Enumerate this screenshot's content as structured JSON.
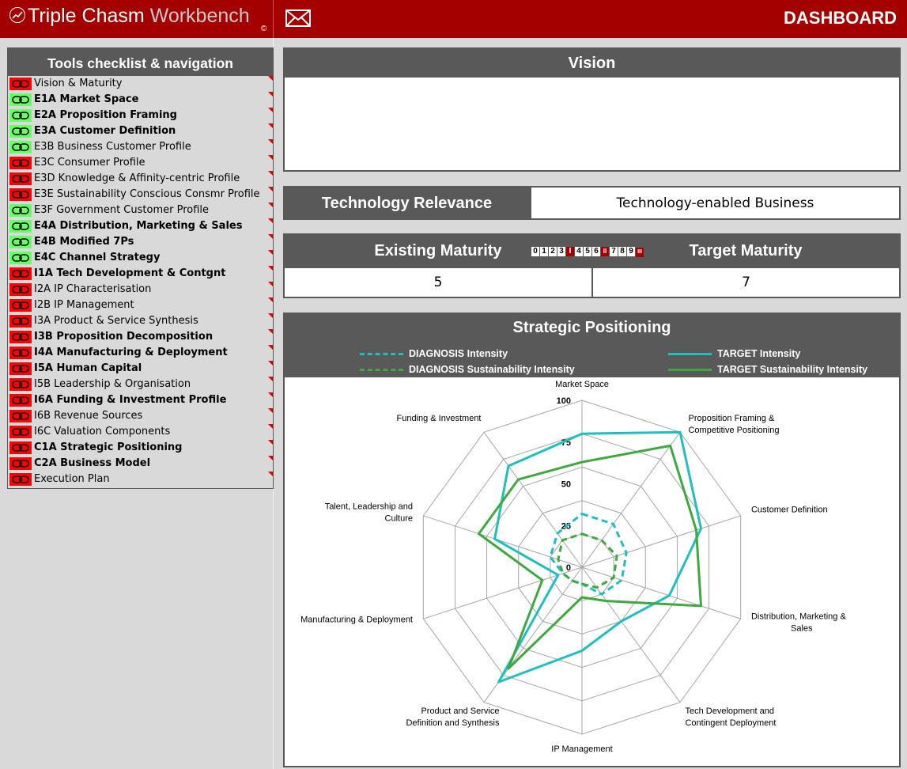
{
  "app": {
    "logo_main": "Triple Chasm",
    "logo_light": "Workbench",
    "logo_copyright": "©",
    "page_title": "DASHBOARD"
  },
  "checklist": {
    "title": "Tools checklist & navigation",
    "items": [
      {
        "label": "Vision & Maturity",
        "status": "red",
        "bold": false
      },
      {
        "label": "E1A Market Space",
        "status": "green",
        "bold": true
      },
      {
        "label": "E2A Proposition Framing",
        "status": "green",
        "bold": true
      },
      {
        "label": "E3A Customer Definition",
        "status": "green",
        "bold": true
      },
      {
        "label": "E3B Business Customer Profile",
        "status": "green",
        "bold": false
      },
      {
        "label": "E3C Consumer Profile",
        "status": "red",
        "bold": false
      },
      {
        "label": "E3D Knowledge & Affinity-centric Profile",
        "status": "red",
        "bold": false
      },
      {
        "label": "E3E Sustainability Conscious Consmr Profile",
        "status": "red",
        "bold": false
      },
      {
        "label": "E3F Government Customer Profile",
        "status": "green",
        "bold": false
      },
      {
        "label": "E4A Distribution, Marketing & Sales",
        "status": "green",
        "bold": true
      },
      {
        "label": "E4B Modified 7Ps",
        "status": "green",
        "bold": true
      },
      {
        "label": "E4C Channel Strategy",
        "status": "green",
        "bold": true
      },
      {
        "label": "I1A Tech Development & Contgnt",
        "status": "red",
        "bold": true
      },
      {
        "label": "I2A IP Characterisation",
        "status": "red",
        "bold": false
      },
      {
        "label": "I2B IP Management",
        "status": "red",
        "bold": false
      },
      {
        "label": "I3A Product & Service Synthesis",
        "status": "red",
        "bold": false
      },
      {
        "label": "I3B Proposition Decomposition",
        "status": "red",
        "bold": true
      },
      {
        "label": "I4A Manufacturing & Deployment",
        "status": "red",
        "bold": true
      },
      {
        "label": "I5A Human Capital",
        "status": "red",
        "bold": true
      },
      {
        "label": "I5B Leadership & Organisation",
        "status": "red",
        "bold": false
      },
      {
        "label": "I6A Funding & Investment Profile",
        "status": "red",
        "bold": true
      },
      {
        "label": "I6B Revenue Sources",
        "status": "red",
        "bold": false
      },
      {
        "label": "I6C Valuation Components",
        "status": "red",
        "bold": false
      },
      {
        "label": "C1A Strategic Positioning",
        "status": "red",
        "bold": true
      },
      {
        "label": "C2A Business Model",
        "status": "red",
        "bold": true
      },
      {
        "label": "Execution Plan",
        "status": "red",
        "bold": false
      }
    ]
  },
  "vision": {
    "title": "Vision",
    "text": ""
  },
  "tech": {
    "label": "Technology Relevance",
    "value": "Technology-enabled Business"
  },
  "maturity": {
    "existing_label": "Existing Maturity",
    "target_label": "Target Maturity",
    "existing_value": "5",
    "target_value": "7",
    "scale": [
      {
        "t": "0",
        "dark": false
      },
      {
        "t": "1",
        "dark": false
      },
      {
        "t": "2",
        "dark": false
      },
      {
        "t": "3",
        "dark": false
      },
      {
        "t": "I",
        "dark": true
      },
      {
        "t": "4",
        "dark": false
      },
      {
        "t": "5",
        "dark": false
      },
      {
        "t": "6",
        "dark": false
      },
      {
        "t": "II",
        "dark": true
      },
      {
        "t": "7",
        "dark": false
      },
      {
        "t": "8",
        "dark": false
      },
      {
        "t": "9",
        "dark": false
      },
      {
        "t": "III",
        "dark": true
      }
    ]
  },
  "colors": {
    "brand_red": "#a50000",
    "panel_gray": "#595959",
    "status_red": "#ff0000",
    "status_green": "#66ff66",
    "teal": "#1fbfbf",
    "green": "#3fa83f"
  },
  "chart_data": {
    "type": "radar",
    "title": "Strategic Positioning",
    "axes": [
      "Market Space",
      "Proposition Framing & Competitive Positioning",
      "Customer Definition",
      "Distribution, Marketing & Sales",
      "Tech Development and Contingent Deployment",
      "IP Management",
      "Product and Service Definition and Synthesis",
      "Manufacturing & Deployment",
      "Talent, Leadership and Culture",
      "Funding & Investment"
    ],
    "axis_label_lines": [
      [
        "Market Space"
      ],
      [
        "Proposition Framing &",
        "Competitive Positioning"
      ],
      [
        "Customer Definition"
      ],
      [
        "Distribution, Marketing &",
        "Sales"
      ],
      [
        "Tech Development and",
        "Contingent Deployment"
      ],
      [
        "IP Management"
      ],
      [
        "Product and Service",
        "Definition and Synthesis"
      ],
      [
        "Manufacturing & Deployment"
      ],
      [
        "Talent, Leadership and",
        "Culture"
      ],
      [
        "Funding & Investment"
      ]
    ],
    "rlim": [
      0,
      100
    ],
    "ticks": [
      0,
      25,
      50,
      75,
      100
    ],
    "legend_position": "top",
    "series": [
      {
        "name": "DIAGNOSIS Intensity",
        "style": "dashed",
        "color": "#1fbfbf",
        "values": [
          32,
          32,
          28,
          25,
          20,
          10,
          10,
          12,
          20,
          25
        ]
      },
      {
        "name": "DIAGNOSIS Sustainability Intensity",
        "style": "dashed",
        "color": "#3fa83f",
        "values": [
          20,
          20,
          22,
          20,
          15,
          10,
          10,
          12,
          15,
          20
        ]
      },
      {
        "name": "TARGET Intensity",
        "style": "solid",
        "color": "#1fbfbf",
        "values": [
          80,
          100,
          75,
          55,
          40,
          50,
          85,
          15,
          55,
          75
        ]
      },
      {
        "name": "TARGET Sustainability Intensity",
        "style": "solid",
        "color": "#3fa83f",
        "values": [
          63,
          90,
          72,
          75,
          25,
          18,
          75,
          25,
          65,
          65
        ]
      }
    ]
  }
}
